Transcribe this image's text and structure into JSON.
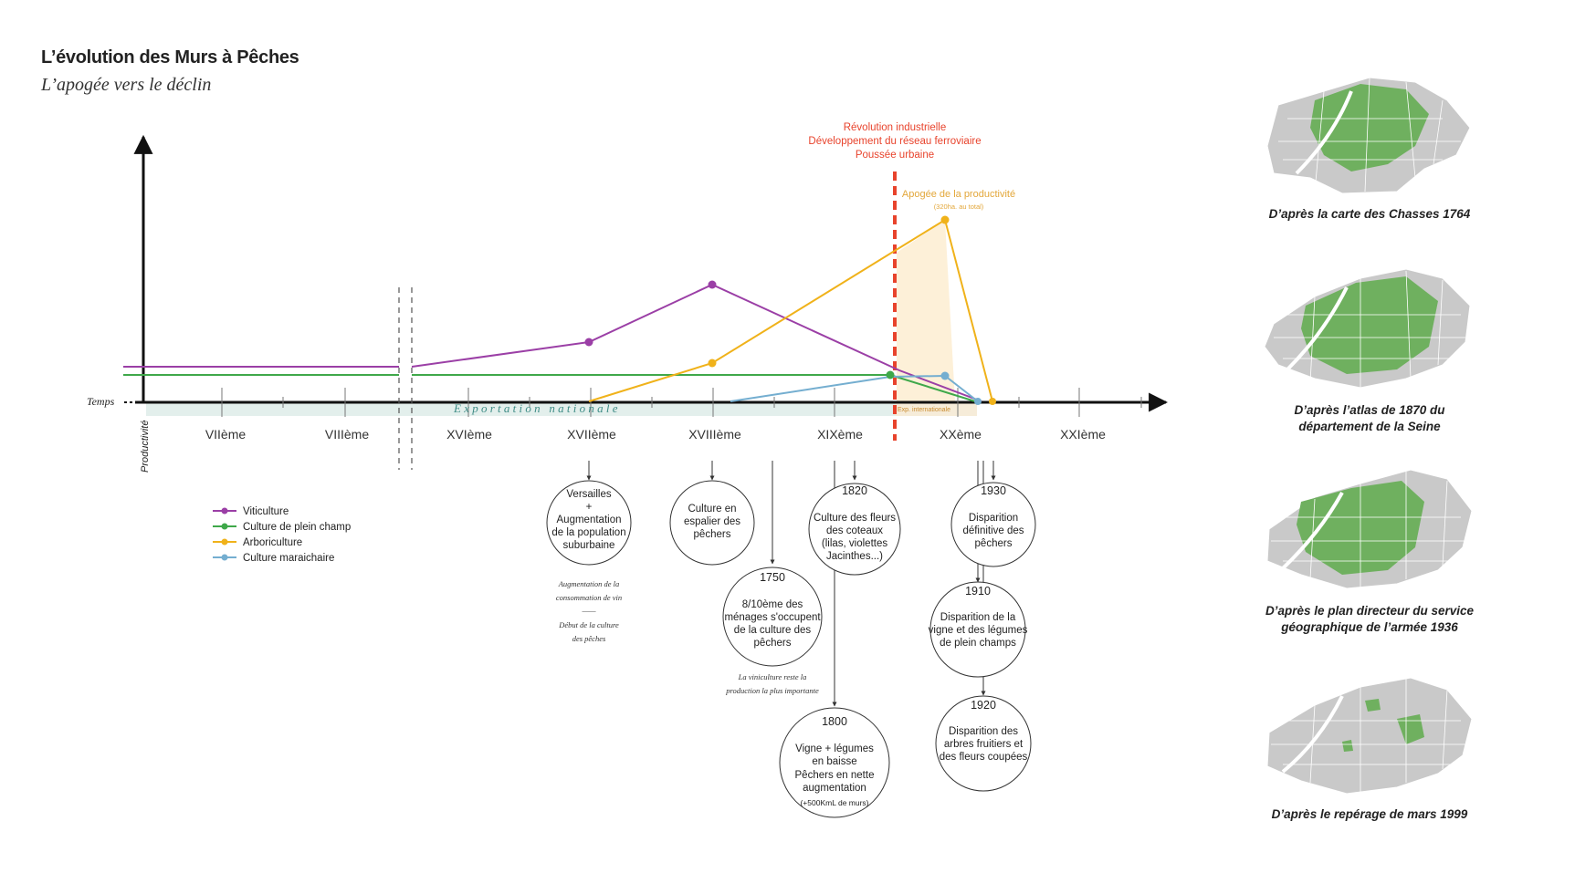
{
  "header": {
    "title": "L’évolution des Murs à Pêches",
    "subtitle": "L’apogée vers le déclin"
  },
  "axes": {
    "x_label": "Temps",
    "y_label": "Productivité",
    "centuries": [
      "VIIème",
      "VIIIème",
      "XVIème",
      "XVIIème",
      "XVIIIème",
      "XIXème",
      "XXème",
      "XXIème"
    ]
  },
  "bands": {
    "export_nationale": "E x p o r t a t i o n   n a t i o n a l e",
    "export_internationale": "Exp. internationale"
  },
  "annotations": {
    "revolution": [
      "Révolution industrielle",
      "Développement du réseau ferroviaire",
      "Poussée urbaine"
    ],
    "apogee": "Apogée de la productivité",
    "apogee_note": "(320ha. au total)"
  },
  "legend": [
    {
      "label": "Viticulture",
      "color": "#9b3fa6"
    },
    {
      "label": "Culture de plein champ",
      "color": "#3fa84a"
    },
    {
      "label": "Arboriculture",
      "color": "#f0b21a"
    },
    {
      "label": "Culture maraichaire",
      "color": "#74aed0"
    }
  ],
  "events": [
    {
      "year": "",
      "lines": [
        "Versailles",
        "+",
        "Augmentation",
        "de la population",
        "suburbaine"
      ]
    },
    {
      "year": "",
      "lines": [
        "Culture en",
        "espalier des",
        "pêchers"
      ]
    },
    {
      "year": "1750",
      "lines": [
        "8/10ème des",
        "ménages s'occupent",
        "de la culture des",
        "pêchers"
      ]
    },
    {
      "year": "1800",
      "lines": [
        "Vigne + légumes",
        "en baisse",
        "Pêchers en nette",
        "augmentation",
        "(+500KmL de murs)"
      ]
    },
    {
      "year": "1820",
      "lines": [
        "Culture des fleurs",
        "des coteaux",
        "(lilas, violettes",
        "Jacinthes...)"
      ]
    },
    {
      "year": "1930",
      "lines": [
        "Disparition",
        "définitive des",
        "pêchers"
      ]
    },
    {
      "year": "1910",
      "lines": [
        "Disparition de la",
        "vigne et des légumes",
        "de plein champs"
      ]
    },
    {
      "year": "1920",
      "lines": [
        "Disparition des",
        "arbres fruitiers et",
        "des fleurs coupées"
      ]
    }
  ],
  "notes": {
    "n17_a": [
      "Augmentation de la",
      "consommation de vin"
    ],
    "n17_sep": "——",
    "n17_b": [
      "Début de la culture",
      "des pêches"
    ],
    "n1750": [
      "La viniculture reste la",
      "production la plus importante"
    ]
  },
  "maps": [
    {
      "caption": [
        "D’après la carte des Chasses 1764"
      ]
    },
    {
      "caption": [
        "D’après l’atlas de 1870 du",
        "département de la Seine"
      ]
    },
    {
      "caption": [
        "D’après le plan directeur du service",
        "géographique de l’armée 1936"
      ]
    },
    {
      "caption": [
        "D’après le repérage de mars 1999"
      ]
    }
  ],
  "colors": {
    "viticulture": "#9b3fa6",
    "plein_champ": "#3fa84a",
    "arboriculture": "#f0b21a",
    "maraichaire": "#74aed0",
    "revolution": "#e8432c",
    "apogee": "#e3a73a",
    "map_green": "#6fb05f",
    "map_grey": "#c9c9c9"
  }
}
